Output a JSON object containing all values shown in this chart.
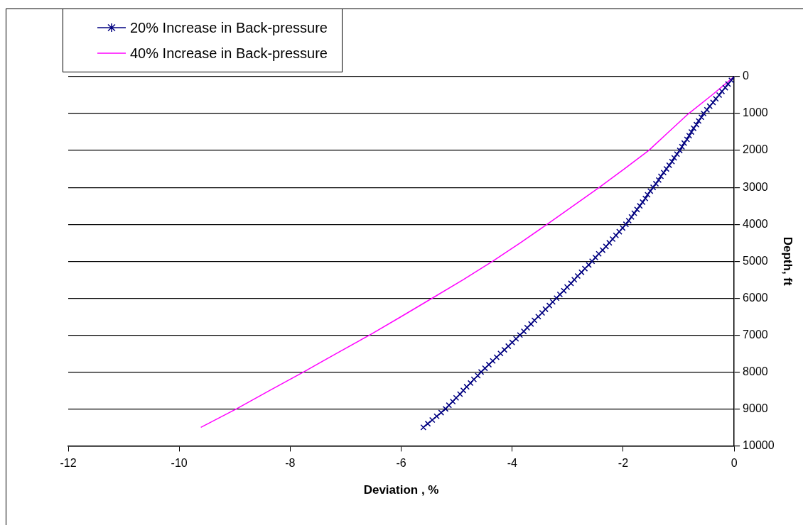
{
  "chart_data": {
    "type": "line",
    "xlabel": "Deviation , %",
    "ylabel": "Depth, ft",
    "xlim": [
      -12,
      0
    ],
    "xticks": [
      -12,
      -10,
      -8,
      -6,
      -4,
      -2,
      0
    ],
    "ylim": [
      10000,
      0
    ],
    "yticks": [
      0,
      1000,
      2000,
      3000,
      4000,
      5000,
      6000,
      7000,
      8000,
      9000,
      10000
    ],
    "grid": "y",
    "legend": "top left",
    "series": [
      {
        "name": "20% Increase in Back-pressure",
        "color": "#000080",
        "marker": "cross",
        "x": [
          0,
          -0.05,
          -0.11,
          -0.16,
          -0.22,
          -0.27,
          -0.33,
          -0.38,
          -0.44,
          -0.49,
          -0.55,
          -0.59,
          -0.64,
          -0.68,
          -0.73,
          -0.77,
          -0.81,
          -0.85,
          -0.9,
          -0.94,
          -0.98,
          -1.03,
          -1.08,
          -1.12,
          -1.17,
          -1.22,
          -1.27,
          -1.32,
          -1.36,
          -1.41,
          -1.46,
          -1.51,
          -1.56,
          -1.6,
          -1.65,
          -1.7,
          -1.75,
          -1.8,
          -1.85,
          -1.9,
          -1.95,
          -2.01,
          -2.07,
          -2.13,
          -2.19,
          -2.25,
          -2.31,
          -2.37,
          -2.44,
          -2.5,
          -2.56,
          -2.62,
          -2.69,
          -2.75,
          -2.82,
          -2.88,
          -2.94,
          -3.01,
          -3.07,
          -3.14,
          -3.2,
          -3.27,
          -3.33,
          -3.4,
          -3.46,
          -3.53,
          -3.6,
          -3.66,
          -3.73,
          -3.79,
          -3.86,
          -3.93,
          -4.0,
          -4.07,
          -4.14,
          -4.21,
          -4.28,
          -4.35,
          -4.42,
          -4.49,
          -4.56,
          -4.62,
          -4.69,
          -4.75,
          -4.82,
          -4.88,
          -4.94,
          -5.01,
          -5.07,
          -5.14,
          -5.2,
          -5.28,
          -5.36,
          -5.44,
          -5.52,
          -5.6
        ],
        "values": [
          0,
          100,
          200,
          300,
          400,
          500,
          600,
          700,
          800,
          900,
          1000,
          1100,
          1200,
          1300,
          1400,
          1500,
          1600,
          1700,
          1800,
          1900,
          2000,
          2100,
          2200,
          2300,
          2400,
          2500,
          2600,
          2700,
          2800,
          2900,
          3000,
          3100,
          3200,
          3300,
          3400,
          3500,
          3600,
          3700,
          3800,
          3900,
          4000,
          4100,
          4200,
          4300,
          4400,
          4500,
          4600,
          4700,
          4800,
          4900,
          5000,
          5100,
          5200,
          5300,
          5400,
          5500,
          5600,
          5700,
          5800,
          5900,
          6000,
          6100,
          6200,
          6300,
          6400,
          6500,
          6600,
          6700,
          6800,
          6900,
          7000,
          7100,
          7200,
          7300,
          7400,
          7500,
          7600,
          7700,
          7800,
          7900,
          8000,
          8100,
          8200,
          8300,
          8400,
          8500,
          8600,
          8700,
          8800,
          8900,
          9000,
          9100,
          9200,
          9300,
          9400,
          9500
        ]
      },
      {
        "name": "40% Increase in Back-pressure",
        "color": "#ff00ff",
        "marker": "none",
        "x": [
          0,
          -0.4,
          -0.82,
          -1.18,
          -1.54,
          -1.98,
          -2.43,
          -2.9,
          -3.37,
          -3.85,
          -4.35,
          -4.88,
          -5.44,
          -6.0,
          -6.57,
          -7.17,
          -7.76,
          -8.37,
          -8.97,
          -9.61
        ],
        "values": [
          0,
          500,
          1000,
          1500,
          2000,
          2500,
          3000,
          3500,
          4000,
          4500,
          5000,
          5500,
          6000,
          6500,
          7000,
          7500,
          8000,
          8500,
          9000,
          9500
        ]
      }
    ]
  }
}
